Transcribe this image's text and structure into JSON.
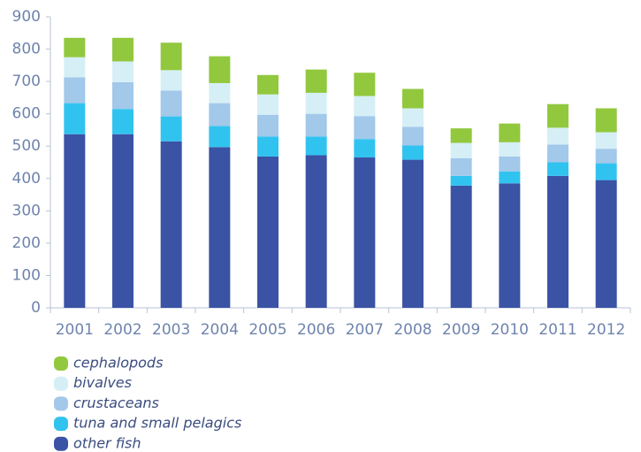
{
  "chart_data": {
    "type": "stacked_bar",
    "categories": [
      "2001",
      "2002",
      "2003",
      "2004",
      "2005",
      "2006",
      "2007",
      "2008",
      "2009",
      "2010",
      "2011",
      "2012"
    ],
    "series": [
      {
        "name": "other fish",
        "color": "#3a53a4",
        "values": [
          537,
          537,
          515,
          497,
          468,
          472,
          465,
          458,
          378,
          385,
          408,
          395
        ]
      },
      {
        "name": "tuna and small pelagics",
        "color": "#31c3ef",
        "values": [
          96,
          78,
          77,
          65,
          62,
          58,
          57,
          44,
          30,
          37,
          42,
          52
        ]
      },
      {
        "name": "crustaceans",
        "color": "#a2c8ea",
        "values": [
          80,
          83,
          80,
          71,
          67,
          70,
          71,
          58,
          55,
          46,
          55,
          45
        ]
      },
      {
        "name": "bivalves",
        "color": "#d6eff6",
        "values": [
          62,
          64,
          63,
          62,
          63,
          65,
          62,
          57,
          47,
          44,
          52,
          51
        ]
      },
      {
        "name": "cephalopods",
        "color": "#92c83e",
        "values": [
          60,
          73,
          85,
          83,
          60,
          72,
          72,
          60,
          45,
          58,
          73,
          74
        ]
      }
    ],
    "ylim": [
      0,
      900
    ],
    "yticks": [
      0,
      100,
      200,
      300,
      400,
      500,
      600,
      700,
      800,
      900
    ],
    "grid": false,
    "legend": "bottom-left"
  }
}
